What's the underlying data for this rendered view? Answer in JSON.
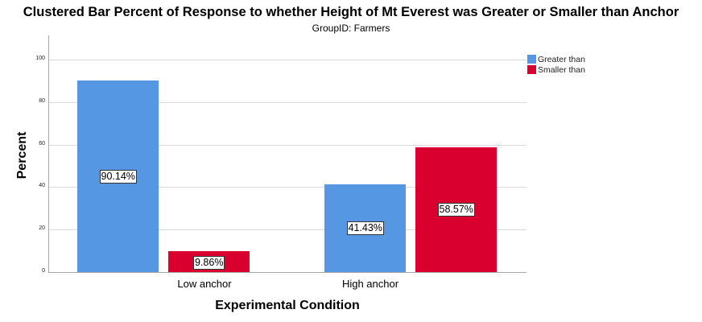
{
  "chart_data": {
    "type": "bar",
    "title": "Clustered Bar Percent of Response to whether Height of Mt Everest was Greater or Smaller than Anchor",
    "subtitle": "GroupID: Farmers",
    "xlabel": "Experimental Condition",
    "ylabel": "Percent",
    "categories": [
      "Low anchor",
      "High anchor"
    ],
    "series": [
      {
        "name": "Greater than",
        "color": "#5597e3",
        "values": [
          90.14,
          41.43
        ],
        "labels": [
          "90.14%",
          "41.43%"
        ]
      },
      {
        "name": "Smaller than",
        "color": "#d90030",
        "values": [
          9.86,
          58.57
        ],
        "labels": [
          "9.86%",
          "58.57%"
        ]
      }
    ],
    "ylim": [
      0,
      110
    ],
    "yticks": [
      "0",
      "20",
      "40",
      "60",
      "80",
      "100"
    ],
    "grid": true,
    "legend_position": "right-top"
  }
}
